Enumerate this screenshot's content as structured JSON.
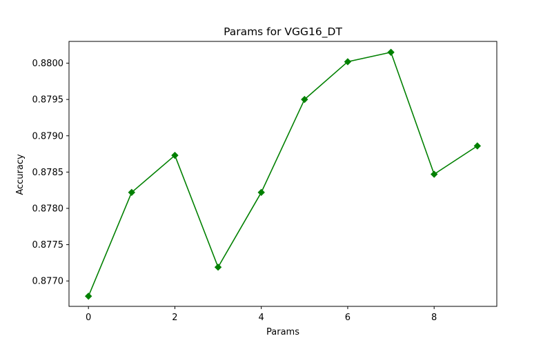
{
  "chart_data": {
    "type": "line",
    "title": "Params for VGG16_DT",
    "xlabel": "Params",
    "ylabel": "Accuracy",
    "x": [
      0,
      1,
      2,
      3,
      4,
      5,
      6,
      7,
      8,
      9
    ],
    "series": [
      {
        "values": [
          0.87679,
          0.87822,
          0.87873,
          0.87719,
          0.87822,
          0.8795,
          0.88002,
          0.88015,
          0.87847,
          0.87886
        ],
        "color": "#008000",
        "marker": "diamond"
      }
    ],
    "xticks": [
      0,
      2,
      4,
      6,
      8
    ],
    "xtick_labels": [
      "0",
      "2",
      "4",
      "6",
      "8"
    ],
    "yticks": [
      0.877,
      0.8775,
      0.878,
      0.8785,
      0.879,
      0.8795,
      0.88
    ],
    "ytick_labels": [
      "0.8770",
      "0.8775",
      "0.8780",
      "0.8785",
      "0.8790",
      "0.8795",
      "0.8800"
    ],
    "xlim": [
      -0.45,
      9.45
    ],
    "ylim": [
      0.87665,
      0.8803
    ],
    "grid": false,
    "legend": "none"
  }
}
